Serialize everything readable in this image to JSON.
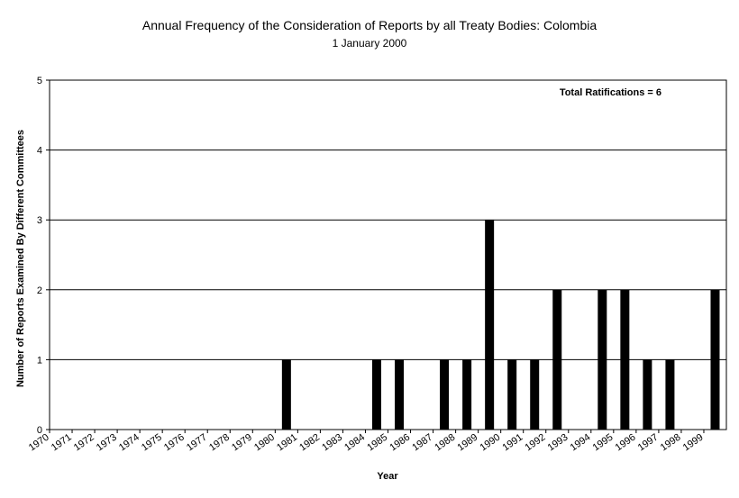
{
  "chart_data": {
    "type": "bar",
    "title": "Annual Frequency of the Consideration of Reports by all Treaty Bodies: Colombia",
    "subtitle": "1 January 2000",
    "xlabel": "Year",
    "ylabel": "Number of Reports Examined By Different Committees",
    "ylim": [
      0,
      5
    ],
    "yticks": [
      "0",
      "1",
      "2",
      "3",
      "4",
      "5"
    ],
    "grid": true,
    "annotation": "Total Ratifications = 6",
    "categories": [
      "1970",
      "1971",
      "1972",
      "1973",
      "1974",
      "1975",
      "1976",
      "1977",
      "1978",
      "1979",
      "1980",
      "1981",
      "1982",
      "1983",
      "1984",
      "1985",
      "1986",
      "1987",
      "1988",
      "1989",
      "1990",
      "1991",
      "1992",
      "1993",
      "1994",
      "1995",
      "1996",
      "1997",
      "1998",
      "1999"
    ],
    "values": [
      0,
      0,
      0,
      0,
      0,
      0,
      0,
      0,
      0,
      0,
      1,
      0,
      0,
      0,
      1,
      1,
      0,
      1,
      1,
      3,
      1,
      1,
      2,
      0,
      2,
      2,
      1,
      1,
      0,
      2
    ],
    "colors": {
      "bar": "#000000",
      "grid": "#000000",
      "axis": "#8b4513"
    }
  }
}
